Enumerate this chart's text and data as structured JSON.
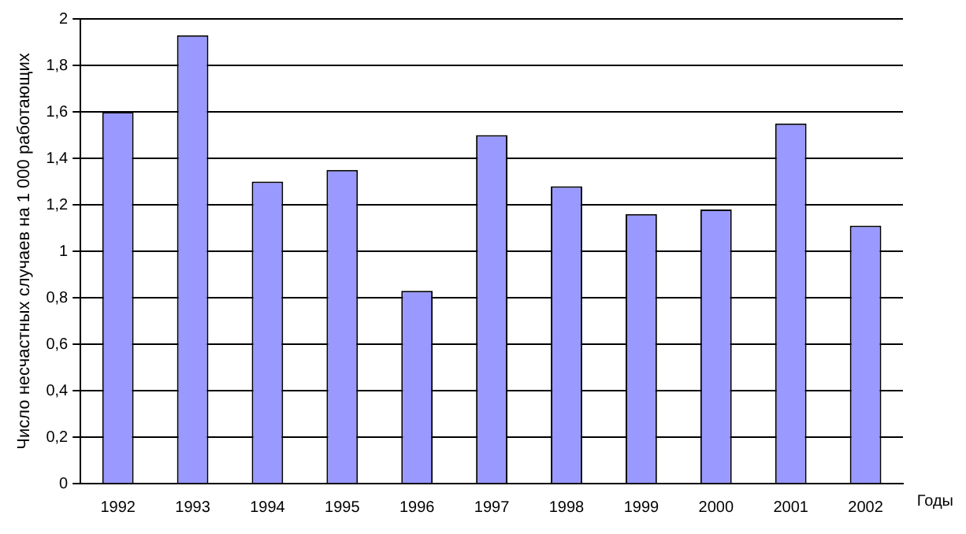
{
  "chart_data": {
    "type": "bar",
    "xlabel": "Годы",
    "ylabel": "Число несчастных случаев на 1 000 работающих",
    "categories": [
      "1992",
      "1993",
      "1994",
      "1995",
      "1996",
      "1997",
      "1998",
      "1999",
      "2000",
      "2001",
      "2002"
    ],
    "values": [
      1.6,
      1.93,
      1.3,
      1.35,
      0.83,
      1.5,
      1.28,
      1.16,
      1.18,
      1.55,
      1.11
    ],
    "color": "#9999ff",
    "ylim": [
      0,
      2
    ],
    "yticks": [
      0,
      {
        "value": 0.2,
        "label": "0,2"
      },
      {
        "value": 0.4,
        "label": "0,4"
      },
      {
        "value": 0.6,
        "label": "0,6"
      },
      {
        "value": 0.8,
        "label": "0,8"
      },
      1,
      {
        "value": 1.2,
        "label": "1,2"
      },
      {
        "value": 1.4,
        "label": "1,4"
      },
      {
        "value": 1.6,
        "label": "1,6"
      },
      {
        "value": 1.8,
        "label": "1,8"
      },
      2
    ],
    "grid": "y",
    "legend": false
  }
}
